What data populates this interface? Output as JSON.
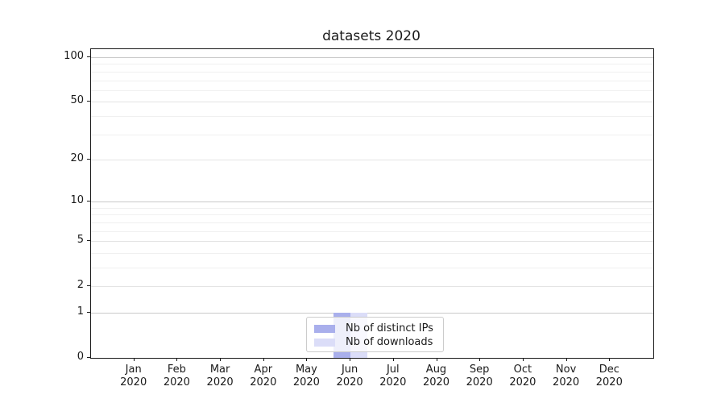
{
  "chart_data": {
    "type": "bar",
    "title": "datasets 2020",
    "months": [
      "Jan",
      "Feb",
      "Mar",
      "Apr",
      "May",
      "Jun",
      "Jul",
      "Aug",
      "Sep",
      "Oct",
      "Nov",
      "Dec"
    ],
    "year": "2020",
    "categories": [
      "Jan 2020",
      "Feb 2020",
      "Mar 2020",
      "Apr 2020",
      "May 2020",
      "Jun 2020",
      "Jul 2020",
      "Aug 2020",
      "Sep 2020",
      "Oct 2020",
      "Nov 2020",
      "Dec 2020"
    ],
    "series": [
      {
        "name": "Nb of distinct IPs",
        "color": "#a9afec",
        "values": [
          0,
          0,
          0,
          0,
          0,
          1,
          0,
          0,
          0,
          0,
          0,
          0
        ]
      },
      {
        "name": "Nb of downloads",
        "color": "#dbddf8",
        "values": [
          0,
          0,
          0,
          0,
          0,
          1,
          0,
          0,
          0,
          0,
          0,
          0
        ]
      }
    ],
    "yticks": [
      0,
      1,
      2,
      5,
      10,
      20,
      50,
      100
    ],
    "minor_gridlines": [
      3,
      4,
      6,
      7,
      8,
      9,
      30,
      40,
      60,
      70,
      80,
      90
    ],
    "y_scale": "log1p",
    "ylim": [
      0,
      113
    ],
    "grid": "both",
    "legend_position": "lower center",
    "colors": {
      "spine": "#1a1a1a",
      "grid_major": "#c9c9c9",
      "grid_medium": "#e4e4e4",
      "grid_minor": "#f0f0f0",
      "background": "#ffffff"
    }
  }
}
